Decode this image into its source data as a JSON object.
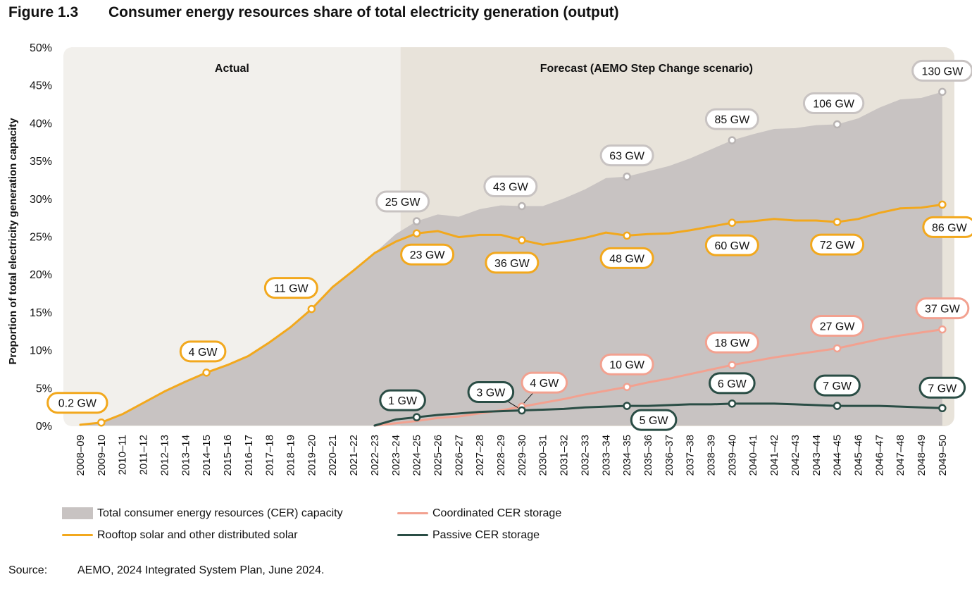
{
  "figure": {
    "number": "Figure 1.3",
    "title": "Consumer energy resources share of total electricity generation (output)"
  },
  "source": {
    "label": "Source:",
    "text": "AEMO, 2024 Integrated System Plan, June 2024."
  },
  "colors": {
    "panel_actual": "#f2f0ec",
    "panel_forecast": "#e8e3da",
    "area": "#c8c3c2",
    "solar": "#f2a81d",
    "coordinated": "#f2a190",
    "passive": "#2a4d45",
    "label_grey_border": "#c8c3c2"
  },
  "chart_data": {
    "type": "area+line",
    "title": "Consumer energy resources share of total electricity generation (output)",
    "ylabel": "Proportion of total electricity generation capacity",
    "xlabel": "",
    "ylim": [
      0,
      50
    ],
    "y_ticks": [
      "0%",
      "5%",
      "10%",
      "15%",
      "20%",
      "25%",
      "30%",
      "35%",
      "40%",
      "45%",
      "50%"
    ],
    "regions": [
      {
        "label": "Actual",
        "from": "2008–09",
        "to": "2023–24"
      },
      {
        "label": "Forecast (AEMO Step Change scenario)",
        "from": "2023–24",
        "to": "2049–50"
      }
    ],
    "categories": [
      "2008–09",
      "2009–10",
      "2010–11",
      "2011–12",
      "2012–13",
      "2013–14",
      "2014–15",
      "2015–16",
      "2016–17",
      "2017–18",
      "2018–19",
      "2019–20",
      "2020–21",
      "2021–22",
      "2022–23",
      "2023–24",
      "2024–25",
      "2025–26",
      "2026–27",
      "2027–28",
      "2028–29",
      "2029–30",
      "2030–31",
      "2031–32",
      "2032–33",
      "2033–34",
      "2034–35",
      "2035–36",
      "2036–37",
      "2037–38",
      "2038–39",
      "2039–40",
      "2040–41",
      "2041–42",
      "2042–43",
      "2043–44",
      "2044–45",
      "2045–46",
      "2046–47",
      "2047–48",
      "2048–49",
      "2049–50"
    ],
    "series": [
      {
        "name": "Total consumer energy resources (CER) capacity",
        "kind": "area",
        "values": [
          0,
          0.4,
          1.5,
          3.0,
          4.5,
          5.8,
          7.0,
          8.0,
          9.2,
          11.0,
          13.0,
          15.4,
          18.3,
          20.5,
          22.8,
          25.3,
          27.0,
          27.9,
          27.6,
          28.6,
          29.1,
          29.0,
          29.0,
          30.0,
          31.2,
          32.7,
          32.9,
          33.6,
          34.3,
          35.3,
          36.5,
          37.7,
          38.5,
          39.2,
          39.3,
          39.7,
          39.8,
          40.6,
          42.0,
          43.1,
          43.3,
          44.1
        ],
        "labels": [
          {
            "category": "2024–25",
            "text": "25 GW"
          },
          {
            "category": "2029–30",
            "text": "43 GW"
          },
          {
            "category": "2034–35",
            "text": "63 GW"
          },
          {
            "category": "2039–40",
            "text": "85 GW"
          },
          {
            "category": "2044–45",
            "text": "106 GW"
          },
          {
            "category": "2049–50",
            "text": "130 GW"
          }
        ]
      },
      {
        "name": "Rooftop solar and other distributed solar",
        "kind": "line",
        "values": [
          0.1,
          0.4,
          1.5,
          3.0,
          4.5,
          5.8,
          7.0,
          8.0,
          9.2,
          11.0,
          13.0,
          15.4,
          18.3,
          20.5,
          22.8,
          24.3,
          25.4,
          25.7,
          24.9,
          25.2,
          25.2,
          24.5,
          23.9,
          24.3,
          24.8,
          25.5,
          25.1,
          25.3,
          25.4,
          25.8,
          26.3,
          26.8,
          27.0,
          27.3,
          27.1,
          27.1,
          26.9,
          27.3,
          28.1,
          28.7,
          28.8,
          29.2
        ],
        "labels": [
          {
            "category": "2009–10",
            "text": "0.2 GW"
          },
          {
            "category": "2014–15",
            "text": "4 GW"
          },
          {
            "category": "2019–20",
            "text": "11 GW"
          },
          {
            "category": "2024–25",
            "text": "23 GW"
          },
          {
            "category": "2029–30",
            "text": "36 GW"
          },
          {
            "category": "2034–35",
            "text": "48 GW"
          },
          {
            "category": "2039–40",
            "text": "60 GW"
          },
          {
            "category": "2044–45",
            "text": "72 GW"
          },
          {
            "category": "2049–50",
            "text": "86 GW"
          }
        ]
      },
      {
        "name": "Coordinated CER storage",
        "kind": "line",
        "values": [
          null,
          null,
          null,
          null,
          null,
          null,
          null,
          null,
          null,
          null,
          null,
          null,
          null,
          null,
          0.0,
          0.3,
          0.6,
          1.0,
          1.2,
          1.6,
          2.0,
          2.5,
          3.0,
          3.5,
          4.1,
          4.6,
          5.1,
          5.7,
          6.2,
          6.8,
          7.4,
          8.0,
          8.5,
          9.0,
          9.4,
          9.8,
          10.2,
          10.8,
          11.4,
          11.9,
          12.3,
          12.7
        ],
        "labels": [
          {
            "category": "2029–30",
            "text": "4 GW"
          },
          {
            "category": "2034–35",
            "text": "10 GW"
          },
          {
            "category": "2039–40",
            "text": "18 GW"
          },
          {
            "category": "2044–45",
            "text": "27 GW"
          },
          {
            "category": "2049–50",
            "text": "37 GW"
          }
        ]
      },
      {
        "name": "Passive CER storage",
        "kind": "line",
        "values": [
          null,
          null,
          null,
          null,
          null,
          null,
          null,
          null,
          null,
          null,
          null,
          null,
          null,
          null,
          0.0,
          0.8,
          1.1,
          1.4,
          1.6,
          1.8,
          1.9,
          2.0,
          2.1,
          2.2,
          2.4,
          2.5,
          2.6,
          2.6,
          2.7,
          2.8,
          2.8,
          2.9,
          2.9,
          2.9,
          2.8,
          2.7,
          2.6,
          2.6,
          2.6,
          2.5,
          2.4,
          2.3
        ],
        "labels": [
          {
            "category": "2024–25",
            "text": "1 GW"
          },
          {
            "category": "2029–30",
            "text": "3 GW"
          },
          {
            "category": "2034–35",
            "text": "5 GW"
          },
          {
            "category": "2039–40",
            "text": "6 GW"
          },
          {
            "category": "2044–45",
            "text": "7 GW"
          },
          {
            "category": "2049–50",
            "text": "7 GW"
          }
        ]
      }
    ],
    "legend": [
      "Total consumer energy resources (CER) capacity",
      "Coordinated CER storage",
      "Rooftop solar and other distributed solar",
      "Passive CER storage"
    ],
    "legend_position": "bottom-left"
  }
}
